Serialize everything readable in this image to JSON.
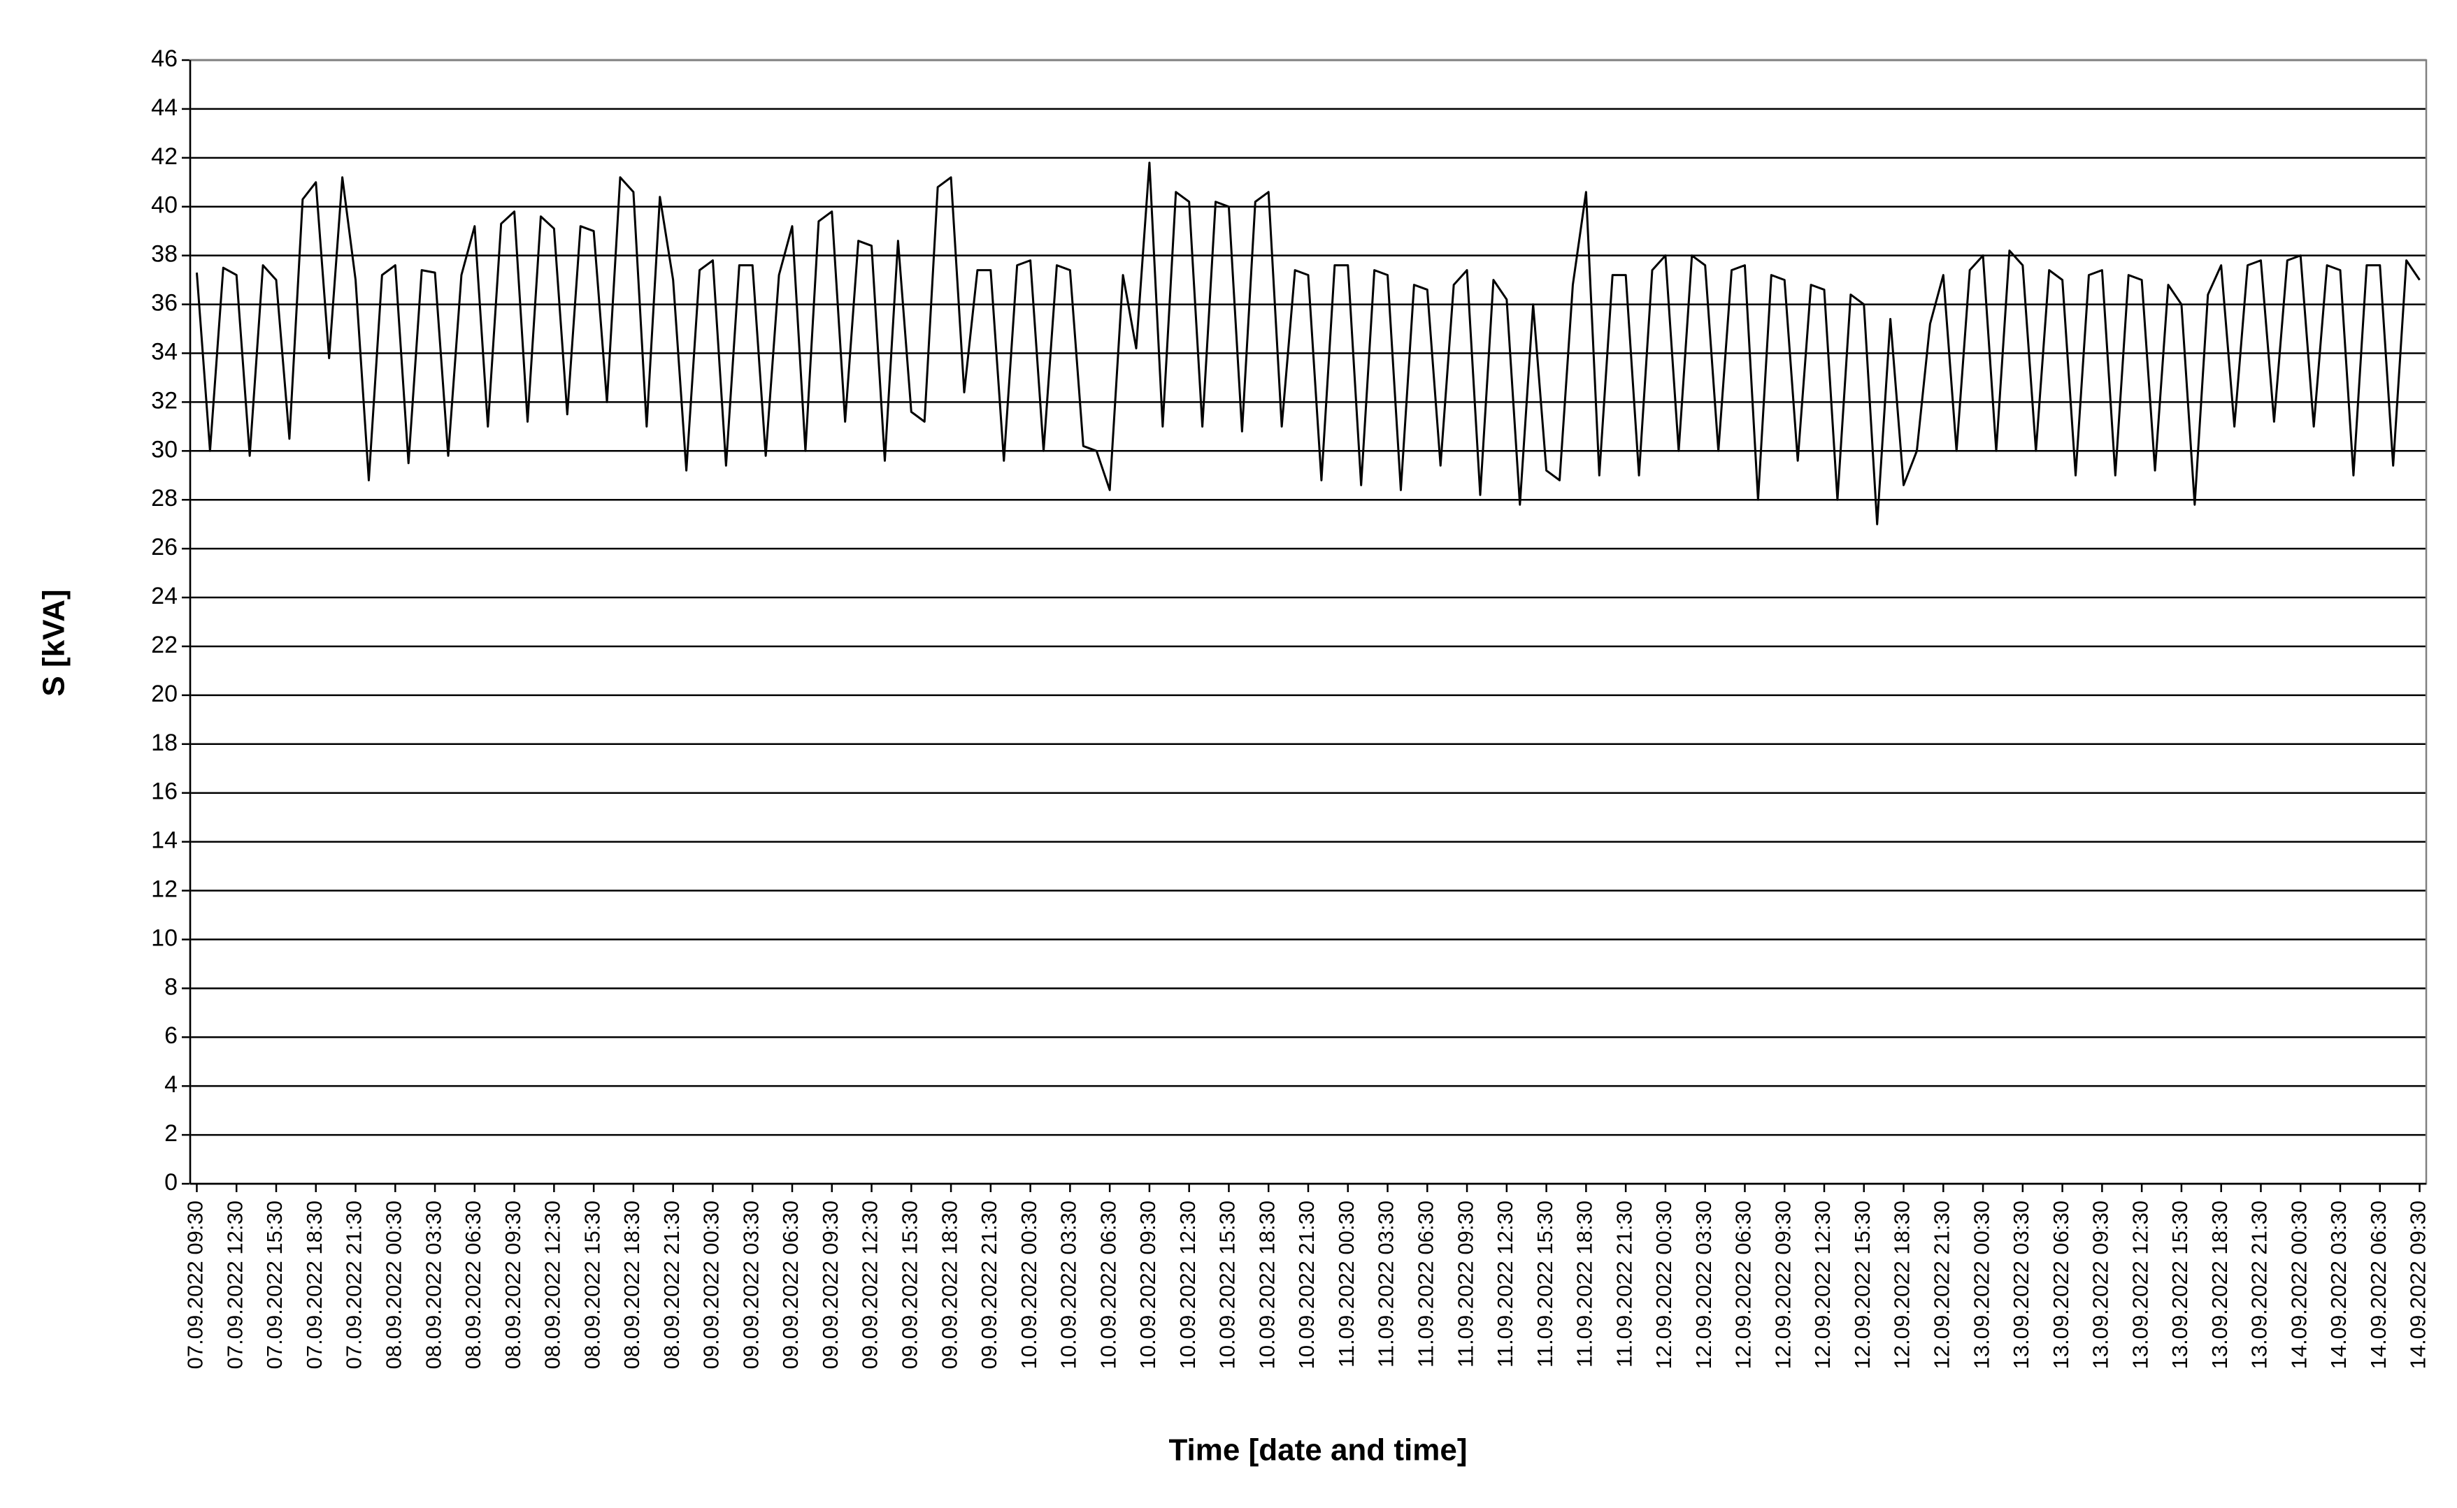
{
  "chart_data": {
    "type": "line",
    "y_label": "S [kVA]",
    "x_label": "Time [date and time]",
    "color": "#000000",
    "grid": true,
    "ylim": [
      0,
      46
    ],
    "yticks": [
      0,
      2,
      4,
      6,
      8,
      10,
      12,
      14,
      16,
      18,
      20,
      22,
      24,
      26,
      28,
      30,
      32,
      34,
      36,
      38,
      40,
      42,
      44,
      46
    ],
    "categories": [
      "07.09.2022 09:30",
      null,
      null,
      "07.09.2022 12:30",
      null,
      null,
      "07.09.2022 15:30",
      null,
      null,
      "07.09.2022 18:30",
      null,
      null,
      "07.09.2022 21:30",
      null,
      null,
      "08.09.2022 00:30",
      null,
      null,
      "08.09.2022 03:30",
      null,
      null,
      "08.09.2022 06:30",
      null,
      null,
      "08.09.2022 09:30",
      null,
      null,
      "08.09.2022 12:30",
      null,
      null,
      "08.09.2022 15:30",
      null,
      null,
      "08.09.2022 18:30",
      null,
      null,
      "08.09.2022 21:30",
      null,
      null,
      "09.09.2022 00:30",
      null,
      null,
      "09.09.2022 03:30",
      null,
      null,
      "09.09.2022 06:30",
      null,
      null,
      "09.09.2022 09:30",
      null,
      null,
      "09.09.2022 12:30",
      null,
      null,
      "09.09.2022 15:30",
      null,
      null,
      "09.09.2022 18:30",
      null,
      null,
      "09.09.2022 21:30",
      null,
      null,
      "10.09.2022 00:30",
      null,
      null,
      "10.09.2022 03:30",
      null,
      null,
      "10.09.2022 06:30",
      null,
      null,
      "10.09.2022 09:30",
      null,
      null,
      "10.09.2022 12:30",
      null,
      null,
      "10.09.2022 15:30",
      null,
      null,
      "10.09.2022 18:30",
      null,
      null,
      "10.09.2022 21:30",
      null,
      null,
      "11.09.2022 00:30",
      null,
      null,
      "11.09.2022 03:30",
      null,
      null,
      "11.09.2022 06:30",
      null,
      null,
      "11.09.2022 09:30",
      null,
      null,
      "11.09.2022 12:30",
      null,
      null,
      "11.09.2022 15:30",
      null,
      null,
      "11.09.2022 18:30",
      null,
      null,
      "11.09.2022 21:30",
      null,
      null,
      "12.09.2022 00:30",
      null,
      null,
      "12.09.2022 03:30",
      null,
      null,
      "12.09.2022 06:30",
      null,
      null,
      "12.09.2022 09:30",
      null,
      null,
      "12.09.2022 12:30",
      null,
      null,
      "12.09.2022 15:30",
      null,
      null,
      "12.09.2022 18:30",
      null,
      null,
      "12.09.2022 21:30",
      null,
      null,
      "13.09.2022 00:30",
      null,
      null,
      "13.09.2022 03:30",
      null,
      null,
      "13.09.2022 06:30",
      null,
      null,
      "13.09.2022 09:30",
      null,
      null,
      "13.09.2022 12:30",
      null,
      null,
      "13.09.2022 15:30",
      null,
      null,
      "13.09.2022 18:30",
      null,
      null,
      "13.09.2022 21:30",
      null,
      null,
      "14.09.2022 00:30",
      null,
      null,
      "14.09.2022 03:30",
      null,
      null,
      "14.09.2022 06:30",
      null,
      null,
      "14.09.2022 09:30"
    ],
    "values": [
      37.3,
      30,
      37.5,
      37.2,
      29.8,
      37.6,
      37,
      30.5,
      40.3,
      41,
      33.8,
      41.2,
      37,
      28.8,
      37.2,
      37.6,
      29.5,
      37.4,
      37.3,
      29.8,
      37.2,
      39.2,
      31,
      39.3,
      39.8,
      31.2,
      39.6,
      39.1,
      31.5,
      39.2,
      39,
      32,
      41.2,
      40.6,
      31,
      40.4,
      37,
      29.2,
      37.4,
      37.8,
      29.4,
      37.6,
      37.6,
      29.8,
      37.2,
      39.2,
      30,
      39.4,
      39.8,
      31.2,
      38.6,
      38.4,
      29.6,
      38.6,
      31.6,
      31.2,
      40.8,
      41.2,
      32.4,
      37.4,
      37.4,
      29.6,
      37.6,
      37.8,
      30,
      37.6,
      37.4,
      30.2,
      30,
      28.4,
      37.2,
      34.2,
      41.8,
      31,
      40.6,
      40.2,
      31,
      40.2,
      40,
      30.8,
      40.2,
      40.6,
      31,
      37.4,
      37.2,
      28.8,
      37.6,
      37.6,
      28.6,
      37.4,
      37.2,
      28.4,
      36.8,
      36.6,
      29.4,
      36.8,
      37.4,
      28.2,
      37,
      36.2,
      27.8,
      36,
      29.2,
      28.8,
      36.8,
      40.6,
      29,
      37.2,
      37.2,
      29,
      37.4,
      38,
      30,
      38,
      37.6,
      30,
      37.4,
      37.6,
      28,
      37.2,
      37,
      29.6,
      36.8,
      36.6,
      28,
      36.4,
      36,
      27,
      35.4,
      28.6,
      30,
      35.2,
      37.2,
      30,
      37.4,
      38,
      30,
      38.2,
      37.6,
      30,
      37.4,
      37,
      29,
      37.2,
      37.4,
      29,
      37.2,
      37,
      29.2,
      36.8,
      36,
      27.8,
      36.4,
      37.6,
      31,
      37.6,
      37.8,
      31.2,
      37.8,
      38,
      31,
      37.6,
      37.4,
      29,
      37.6,
      37.6,
      29.4,
      37.8,
      37
    ]
  }
}
